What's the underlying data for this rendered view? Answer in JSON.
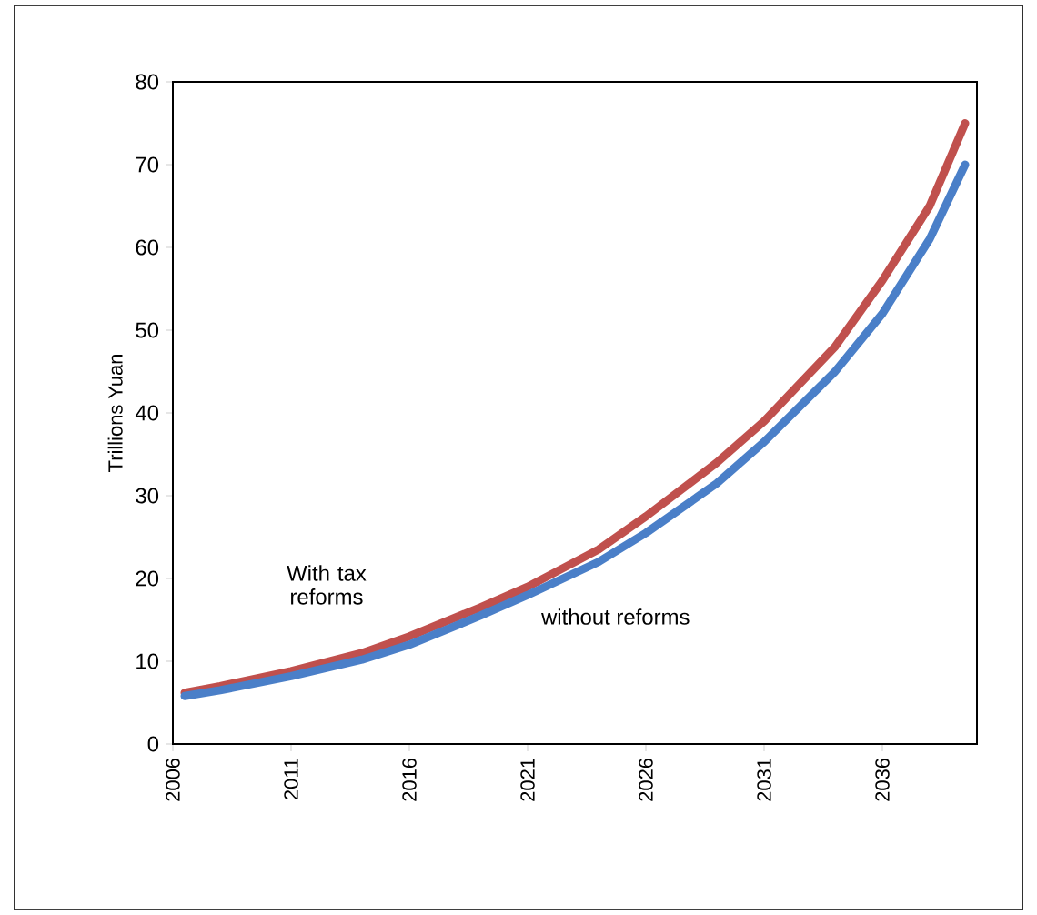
{
  "chart_data": {
    "type": "line",
    "ylabel": "Trillions Yuan",
    "xlim": [
      2006,
      2040
    ],
    "xticks": [
      2006,
      2011,
      2016,
      2021,
      2026,
      2031,
      2036
    ],
    "ylim": [
      0,
      80
    ],
    "yticks": [
      0,
      10,
      20,
      30,
      40,
      50,
      60,
      70,
      80
    ],
    "grid": false,
    "marker": "none",
    "line_style": "solid",
    "x": [
      2006.5,
      2008,
      2011,
      2014,
      2016,
      2019,
      2021,
      2024,
      2026,
      2029,
      2031,
      2034,
      2036,
      2038,
      2039.5
    ],
    "series": [
      {
        "name": "With tax reforms",
        "color": "#c0504d",
        "values": [
          6.2,
          7,
          8.8,
          11,
          13,
          16.5,
          19,
          23.5,
          27.5,
          34,
          39,
          48,
          56,
          65,
          75
        ]
      },
      {
        "name": "without reforms",
        "color": "#4a7fc8",
        "values": [
          5.8,
          6.5,
          8.2,
          10.2,
          12,
          15.5,
          18,
          22,
          25.5,
          31.5,
          36.5,
          45,
          52,
          61,
          70
        ]
      }
    ]
  }
}
